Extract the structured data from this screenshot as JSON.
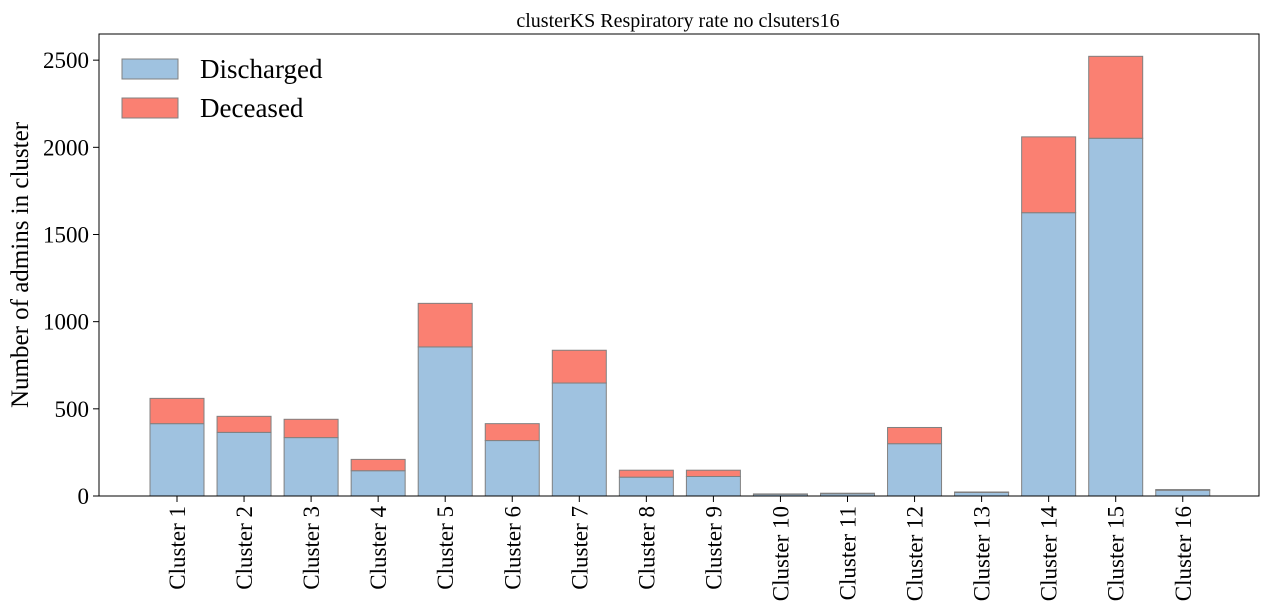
{
  "chart_data": {
    "type": "bar",
    "stacked": true,
    "title": "clusterKS Respiratory rate no clsuters16",
    "xlabel": "",
    "ylabel": "Number of admins in cluster",
    "ylim": [
      0,
      2650
    ],
    "yticks": [
      0,
      500,
      1000,
      1500,
      2000,
      2500
    ],
    "ytick_labels": [
      "0",
      "500",
      "1000",
      "1500",
      "2000",
      "2500"
    ],
    "legend_position": "top-left",
    "grid": false,
    "categories": [
      "Cluster 1",
      "Cluster 2",
      "Cluster 3",
      "Cluster 4",
      "Cluster 5",
      "Cluster 6",
      "Cluster 7",
      "Cluster 8",
      "Cluster 9",
      "Cluster 10",
      "Cluster 11",
      "Cluster 12",
      "Cluster 13",
      "Cluster 14",
      "Cluster 15",
      "Cluster 16"
    ],
    "series": [
      {
        "name": "Discharged",
        "color": "#9fc2e0",
        "values": [
          415,
          365,
          335,
          145,
          855,
          318,
          648,
          108,
          112,
          10,
          13,
          300,
          20,
          1625,
          2052,
          33
        ]
      },
      {
        "name": "Deceased",
        "color": "#fa8072",
        "values": [
          145,
          92,
          105,
          65,
          250,
          97,
          188,
          40,
          36,
          2,
          3,
          93,
          3,
          435,
          470,
          4
        ]
      }
    ]
  }
}
